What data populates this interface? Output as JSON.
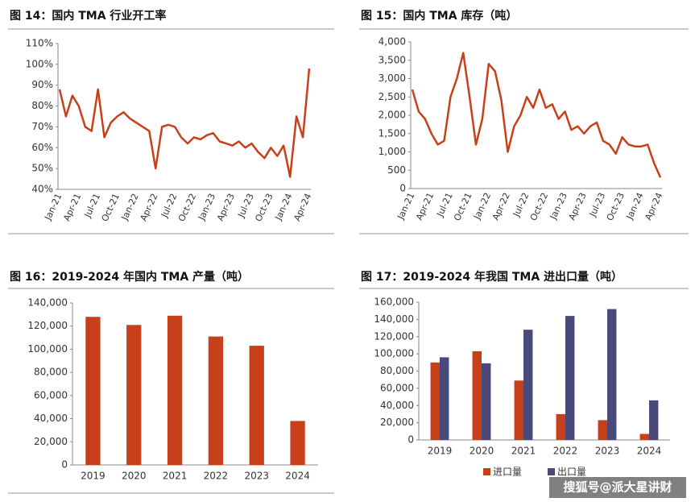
{
  "chart_data": [
    {
      "type": "line",
      "title": "图 14：国内 TMA 行业开工率",
      "color": "#c8401a",
      "categories": [
        "Jan-21",
        null,
        null,
        "Apr-21",
        null,
        null,
        "Jul-21",
        null,
        null,
        "Oct-21",
        null,
        null,
        "Jan-22",
        null,
        null,
        "Apr-22",
        null,
        null,
        "Jul-22",
        null,
        null,
        "Oct-22",
        null,
        null,
        "Jan-23",
        null,
        null,
        "Apr-23",
        null,
        null,
        "Jul-23",
        null,
        null,
        "Oct-23",
        null,
        null,
        "Jan-24",
        null,
        null,
        "Apr-24"
      ],
      "values": [
        88,
        75,
        85,
        80,
        70,
        68,
        88,
        65,
        72,
        75,
        77,
        74,
        72,
        70,
        68,
        50,
        70,
        71,
        70,
        65,
        62,
        65,
        64,
        66,
        67,
        63,
        62,
        61,
        63,
        60,
        62,
        58,
        55,
        60,
        56,
        61,
        46,
        75,
        65,
        98
      ],
      "ylim": [
        40,
        110
      ],
      "yticks": [
        {
          "value": 40,
          "label": "40%"
        },
        {
          "value": 50,
          "label": "50%"
        },
        {
          "value": 60,
          "label": "60%"
        },
        {
          "value": 70,
          "label": "70%"
        },
        {
          "value": 80,
          "label": "80%"
        },
        {
          "value": 90,
          "label": "90%"
        },
        {
          "value": 100,
          "label": "100%"
        },
        {
          "value": 110,
          "label": "110%"
        }
      ]
    },
    {
      "type": "line",
      "title": "图 15：国内 TMA 库存（吨）",
      "color": "#c8401a",
      "categories": [
        "Jan-21",
        null,
        null,
        "Apr-21",
        null,
        null,
        "Jul-21",
        null,
        null,
        "Oct-21",
        null,
        null,
        "Jan-22",
        null,
        null,
        "Apr-22",
        null,
        null,
        "Jul-22",
        null,
        null,
        "Oct-22",
        null,
        null,
        "Jan-23",
        null,
        null,
        "Apr-23",
        null,
        null,
        "Jul-23",
        null,
        null,
        "Oct-23",
        null,
        null,
        "Jan-24",
        null,
        null,
        "Apr-24"
      ],
      "values": [
        2700,
        2100,
        1900,
        1500,
        1200,
        1300,
        2500,
        3000,
        3700,
        2500,
        1200,
        1900,
        3400,
        3200,
        2400,
        1000,
        1700,
        2000,
        2500,
        2200,
        2700,
        2200,
        2300,
        1900,
        2100,
        1600,
        1700,
        1500,
        1700,
        1800,
        1300,
        1200,
        950,
        1400,
        1200,
        1150,
        1150,
        1200,
        700,
        300
      ],
      "ylim": [
        0,
        4000
      ],
      "yticks": [
        0,
        500,
        {
          "value": 1000,
          "label": "1,000"
        },
        {
          "value": 1500,
          "label": "1,500"
        },
        {
          "value": 2000,
          "label": "2,000"
        },
        {
          "value": 2500,
          "label": "2,500"
        },
        {
          "value": 3000,
          "label": "3,000"
        },
        {
          "value": 3500,
          "label": "3,500"
        },
        {
          "value": 4000,
          "label": "4,000"
        }
      ]
    },
    {
      "type": "bar",
      "title": "图 16：2019-2024 年国内 TMA 产量（吨）",
      "color": "#c8401a",
      "categories": [
        "2019",
        "2020",
        "2021",
        "2022",
        "2023",
        "2024"
      ],
      "values": [
        128000,
        121000,
        129000,
        111000,
        103000,
        38000
      ],
      "ylim": [
        0,
        140000
      ],
      "yticks": [
        0,
        {
          "value": 20000,
          "label": "20,000"
        },
        {
          "value": 40000,
          "label": "40,000"
        },
        {
          "value": 60000,
          "label": "60,000"
        },
        {
          "value": 80000,
          "label": "80,000"
        },
        {
          "value": 100000,
          "label": "100,000"
        },
        {
          "value": 120000,
          "label": "120,000"
        },
        {
          "value": 140000,
          "label": "140,000"
        }
      ]
    },
    {
      "type": "bar",
      "title": "图 17：2019-2024 年我国 TMA 进出口量（吨）",
      "categories": [
        "2019",
        "2020",
        "2021",
        "2022",
        "2023",
        "2024"
      ],
      "series": [
        {
          "name": "进口量",
          "color": "#c8401a",
          "values": [
            90000,
            103000,
            69000,
            30000,
            23000,
            7000
          ]
        },
        {
          "name": "出口量",
          "color": "#4a4a7a",
          "values": [
            96000,
            89000,
            128000,
            144000,
            152000,
            46000
          ]
        }
      ],
      "ylim": [
        0,
        160000
      ],
      "yticks": [
        0,
        {
          "value": 20000,
          "label": "20,000"
        },
        {
          "value": 40000,
          "label": "40,000"
        },
        {
          "value": 60000,
          "label": "60,000"
        },
        {
          "value": 80000,
          "label": "80,000"
        },
        {
          "value": 100000,
          "label": "100,000"
        },
        {
          "value": 120000,
          "label": "120,000"
        },
        {
          "value": 140000,
          "label": "140,000"
        },
        {
          "value": 160000,
          "label": "160,000"
        }
      ]
    }
  ],
  "watermark": "搜狐号@派大星讲财"
}
